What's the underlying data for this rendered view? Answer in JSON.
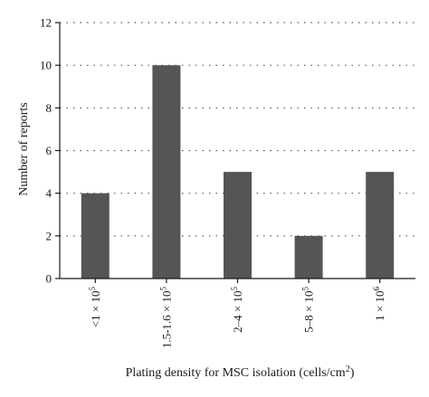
{
  "chart_data": {
    "type": "bar",
    "categories": [
      {
        "base": "<1 × 10",
        "exp": "5"
      },
      {
        "base": "1.5-1.6 × 10",
        "exp": "5"
      },
      {
        "base": "2–4 × 10",
        "exp": "5"
      },
      {
        "base": "5–8 × 10",
        "exp": "5"
      },
      {
        "base": "1 × 10",
        "exp": "6"
      }
    ],
    "values": [
      4,
      10,
      5,
      2,
      5
    ],
    "ylabel": "Number of reports",
    "xlabel": {
      "text": "Plating density for MSC isolation (cells/cm",
      "sup": "2",
      "close": ")"
    },
    "ylim": [
      0,
      12
    ],
    "yticks": [
      0,
      2,
      4,
      6,
      8,
      10,
      12
    ],
    "grid": "horizontal-dotted",
    "bar_color": "#555555",
    "axis_color": "#1a1a1a",
    "grid_color": "#555555"
  }
}
